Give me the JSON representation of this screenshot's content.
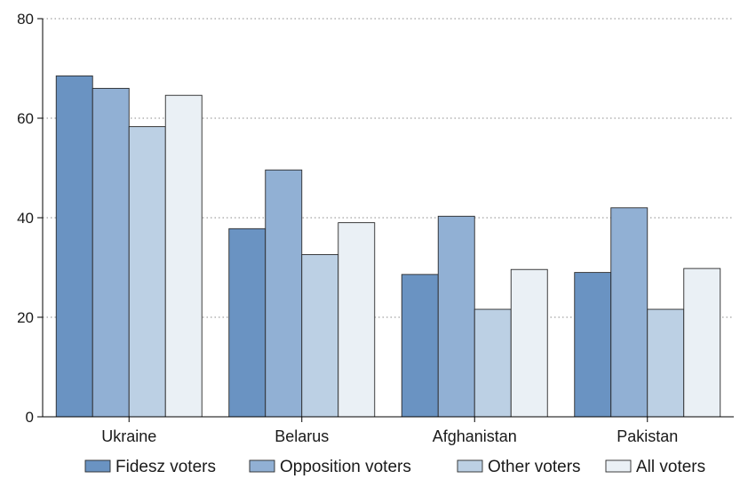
{
  "chart_data": {
    "type": "bar",
    "categories": [
      "Ukraine",
      "Belarus",
      "Afghanistan",
      "Pakistan"
    ],
    "series": [
      {
        "name": "Fidesz voters",
        "color": "#6a93c2",
        "values": [
          68.5,
          37.8,
          28.6,
          29.0
        ]
      },
      {
        "name": "Opposition voters",
        "color": "#91b0d4",
        "values": [
          66.0,
          49.6,
          40.3,
          42.0
        ]
      },
      {
        "name": "Other voters",
        "color": "#bcd0e4",
        "values": [
          58.3,
          32.6,
          21.6,
          21.6
        ]
      },
      {
        "name": "All voters",
        "color": "#eaf0f5",
        "values": [
          64.6,
          39.0,
          29.6,
          29.8
        ]
      }
    ],
    "ylim": [
      0,
      80
    ],
    "yticks": [
      0,
      20,
      40,
      60,
      80
    ],
    "grid": true,
    "legend_position": "bottom",
    "title": "",
    "xlabel": "",
    "ylabel": ""
  }
}
